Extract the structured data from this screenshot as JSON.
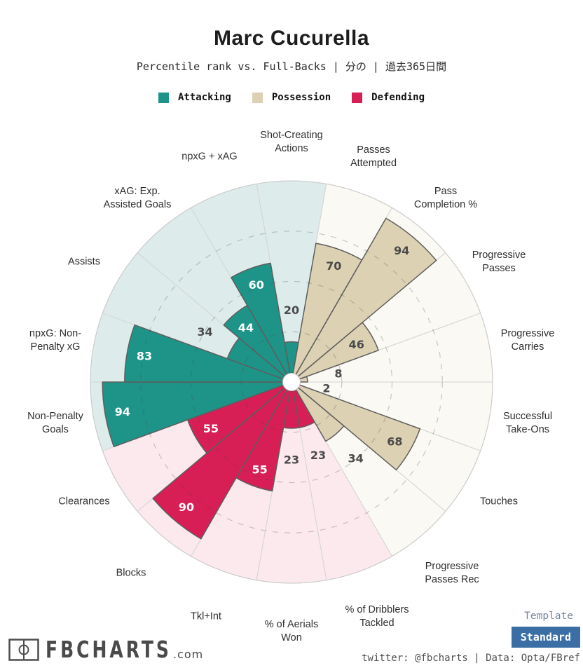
{
  "header": {
    "title": "Marc Cucurella",
    "subtitle": "Percentile rank vs. Full-Backs | 分の | 過去365日間"
  },
  "legend": [
    {
      "label": "Attacking",
      "color": "#1e9489"
    },
    {
      "label": "Possession",
      "color": "#ddd1b3"
    },
    {
      "label": "Defending",
      "color": "#d71e55"
    }
  ],
  "chart_data": {
    "type": "pie",
    "subtype": "pizza-percentile-radar",
    "title": "Marc Cucurella",
    "subtitle": "Percentile rank vs. Full-Backs | 分の | 過去365日間",
    "scale": [
      0,
      100
    ],
    "start": "top",
    "direction": "clockwise",
    "gridlines": [
      25,
      50,
      75
    ],
    "grid_style": "dashed",
    "legend_position": "top",
    "groups": {
      "Attacking": {
        "fill": "#1e9489",
        "bg": "#ddeceb",
        "value_color": "#ffffff"
      },
      "Possession": {
        "fill": "#ddd1b3",
        "bg": "#faf9f3",
        "value_color": "#4a4a4a"
      },
      "Defending": {
        "fill": "#d71e55",
        "bg": "#fbe9ee",
        "value_color": "#ffffff"
      }
    },
    "params": [
      {
        "label": "Shot-Creating\nActions",
        "value": 20,
        "group": "Attacking"
      },
      {
        "label": "Passes\nAttempted",
        "value": 70,
        "group": "Possession"
      },
      {
        "label": "Pass\nCompletion %",
        "value": 94,
        "group": "Possession"
      },
      {
        "label": "Progressive\nPasses",
        "value": 46,
        "group": "Possession"
      },
      {
        "label": "Progressive\nCarries",
        "value": 8,
        "group": "Possession"
      },
      {
        "label": "Successful\nTake-Ons",
        "value": 2,
        "group": "Possession"
      },
      {
        "label": "Touches",
        "value": 68,
        "group": "Possession"
      },
      {
        "label": "Progressive\nPasses Rec",
        "value": 34,
        "group": "Possession"
      },
      {
        "label": "% of Dribblers\nTackled",
        "value": 23,
        "group": "Defending"
      },
      {
        "label": "% of Aerials\nWon",
        "value": 23,
        "group": "Defending"
      },
      {
        "label": "Tkl+Int",
        "value": 55,
        "group": "Defending"
      },
      {
        "label": "Blocks",
        "value": 90,
        "group": "Defending"
      },
      {
        "label": "Clearances",
        "value": 55,
        "group": "Defending"
      },
      {
        "label": "Non-Penalty\nGoals",
        "value": 94,
        "group": "Attacking"
      },
      {
        "label": "npxG: Non-\nPenalty xG",
        "value": 83,
        "group": "Attacking"
      },
      {
        "label": "Assists",
        "value": 34,
        "group": "Attacking"
      },
      {
        "label": "xAG: Exp.\nAssisted Goals",
        "value": 44,
        "group": "Attacking"
      },
      {
        "label": "npxG + xAG",
        "value": 60,
        "group": "Attacking"
      }
    ]
  },
  "footer": {
    "brand": "FBCHARTS",
    "brand_suffix": ".com",
    "template_label": "Template",
    "template_value": "Standard",
    "button_color": "#3a6ea5",
    "credit": "twitter: @fbcharts | Data: Opta/FBref"
  }
}
